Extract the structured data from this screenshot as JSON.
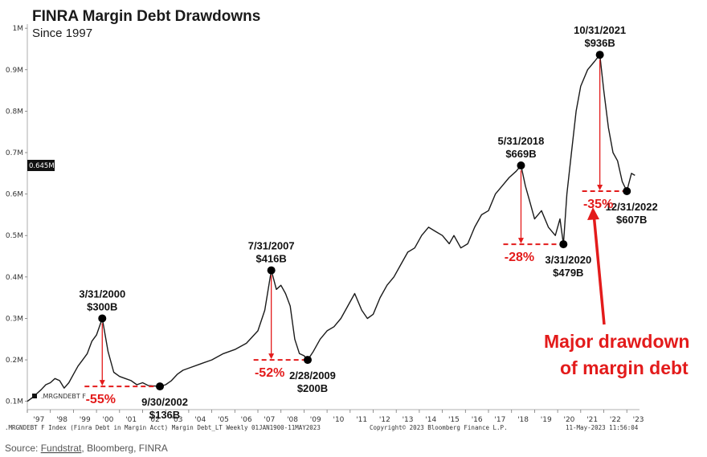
{
  "chart_data": {
    "type": "line",
    "title": "FINRA Margin Debt Drawdowns",
    "subtitle": "Since 1997",
    "ytick_labels": [
      "0.1M",
      "0.2M",
      "0.3M",
      "0.4M",
      "0.5M",
      "0.6M",
      "0.7M",
      "0.8M",
      "0.9M",
      "1M"
    ],
    "ytick_values": [
      100,
      200,
      300,
      400,
      500,
      600,
      700,
      800,
      900,
      1000
    ],
    "ylim": [
      80,
      1010
    ],
    "xlim": [
      1997.0,
      2023.55
    ],
    "xtick_labels": [
      "'97",
      "'98",
      "'99",
      "'00",
      "'01",
      "'02",
      "'03",
      "'04",
      "'05",
      "'06",
      "'07",
      "'08",
      "'09",
      "'10",
      "'11",
      "'12",
      "'13",
      "'14",
      "'15",
      "'16",
      "'17",
      "'18",
      "'19",
      "'20",
      "'21",
      "'22",
      "'23"
    ],
    "current_value_label": "0.645M",
    "current_value": 645,
    "legend_label": ".MRGNDEBT F",
    "series": [
      {
        "name": ".MRGNDEBT F",
        "x": [
          1997.0,
          1997.2,
          1997.4,
          1997.6,
          1997.8,
          1998.0,
          1998.2,
          1998.4,
          1998.6,
          1998.8,
          1999.0,
          1999.2,
          1999.4,
          1999.6,
          1999.8,
          2000.0,
          2000.25,
          2000.5,
          2000.75,
          2001.0,
          2001.25,
          2001.5,
          2001.75,
          2002.0,
          2002.25,
          2002.5,
          2002.75,
          2003.0,
          2003.25,
          2003.5,
          2003.75,
          2004.0,
          2004.5,
          2005.0,
          2005.5,
          2006.0,
          2006.5,
          2007.0,
          2007.3,
          2007.58,
          2007.8,
          2008.0,
          2008.2,
          2008.4,
          2008.6,
          2008.8,
          2009.0,
          2009.16,
          2009.4,
          2009.7,
          2010.0,
          2010.3,
          2010.6,
          2010.9,
          2011.2,
          2011.5,
          2011.75,
          2012.0,
          2012.3,
          2012.6,
          2012.9,
          2013.2,
          2013.5,
          2013.8,
          2014.1,
          2014.4,
          2014.7,
          2015.0,
          2015.3,
          2015.5,
          2015.8,
          2016.1,
          2016.4,
          2016.7,
          2017.0,
          2017.3,
          2017.6,
          2017.9,
          2018.2,
          2018.41,
          2018.6,
          2018.8,
          2019.0,
          2019.3,
          2019.6,
          2019.9,
          2020.1,
          2020.25,
          2020.4,
          2020.6,
          2020.8,
          2021.0,
          2021.3,
          2021.6,
          2021.83,
          2022.0,
          2022.2,
          2022.4,
          2022.6,
          2022.8,
          2023.0,
          2023.2,
          2023.35
        ],
        "values": [
          100,
          108,
          118,
          128,
          140,
          145,
          155,
          150,
          132,
          145,
          165,
          185,
          200,
          215,
          245,
          260,
          300,
          220,
          170,
          160,
          155,
          150,
          140,
          145,
          138,
          137,
          136,
          140,
          150,
          165,
          175,
          180,
          190,
          200,
          215,
          225,
          240,
          270,
          320,
          416,
          370,
          380,
          360,
          330,
          250,
          215,
          210,
          200,
          220,
          250,
          270,
          280,
          300,
          330,
          360,
          320,
          300,
          310,
          350,
          380,
          400,
          430,
          460,
          470,
          500,
          520,
          510,
          500,
          480,
          500,
          470,
          480,
          520,
          550,
          560,
          600,
          620,
          640,
          655,
          669,
          620,
          580,
          540,
          560,
          520,
          500,
          540,
          479,
          600,
          700,
          800,
          860,
          900,
          920,
          936,
          850,
          760,
          700,
          680,
          630,
          607,
          650,
          645
        ]
      }
    ],
    "drawdowns": [
      {
        "peak_x": 2000.25,
        "peak_value": 300,
        "trough_x": 2002.75,
        "trough_value": 136,
        "peak_date": "3/31/2000",
        "peak_label": "$300B",
        "trough_date": "9/30/2002",
        "trough_label": "$136B",
        "pct": "-55%"
      },
      {
        "peak_x": 2007.58,
        "peak_value": 416,
        "trough_x": 2009.16,
        "trough_value": 200,
        "peak_date": "7/31/2007",
        "peak_label": "$416B",
        "trough_date": "2/28/2009",
        "trough_label": "$200B",
        "pct": "-52%"
      },
      {
        "peak_x": 2018.41,
        "peak_value": 669,
        "trough_x": 2020.25,
        "trough_value": 479,
        "peak_date": "5/31/2018",
        "peak_label": "$669B",
        "trough_date": "3/31/2020",
        "trough_label": "$479B",
        "pct": "-28%"
      },
      {
        "peak_x": 2021.83,
        "peak_value": 936,
        "trough_x": 2023.0,
        "trough_value": 607,
        "peak_date": "10/31/2021",
        "peak_label": "$936B",
        "trough_date": "12/31/2022",
        "trough_label": "$607B",
        "pct": "-35%"
      }
    ],
    "callout": [
      "Major drawdown",
      "of  margin debt"
    ],
    "footer_left": ".MRGNDEBT F Index (Finra Debt in Margin Acct) Margin Debt_LT  Weekly 01JAN1900-11MAY2023",
    "footer_mid": "Copyright© 2023 Bloomberg Finance L.P.",
    "footer_right": "11-May-2023 11:56:04",
    "source_prefix": "Source: ",
    "source_fundstrat": "Fundstrat",
    "source_rest": ", Bloomberg, FINRA",
    "colors": {
      "line": "#1a1a1a",
      "accent": "#e31b1b",
      "marker": "#000000"
    }
  }
}
